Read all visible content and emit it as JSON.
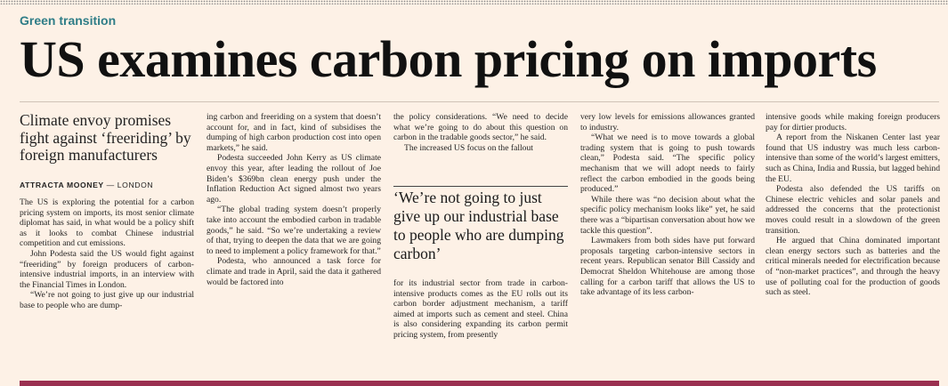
{
  "section": "Green transition",
  "headline": "US examines carbon pricing on imports",
  "standfirst": "Climate envoy promises fight against ‘freeriding’ by foreign manufacturers",
  "byline": {
    "author": "ATTRACTA MOONEY",
    "place": "— LONDON"
  },
  "pull_quote": "‘We’re not going to just give up our industrial base to people who are dumping carbon’",
  "columns": {
    "col1": [
      "The US is exploring the potential for a carbon pricing system on imports, its most senior climate diplomat has said, in what would be a policy shift as it looks to combat Chinese industrial competition and cut emissions.",
      "John Podesta said the US would fight against “freeriding” by foreign producers of carbon-intensive industrial imports, in an interview with the Financial Times in London.",
      "“We’re not going to just give up our industrial base to people who are dump-"
    ],
    "col2": [
      "ing carbon and freeriding on a system that doesn’t account for, and in fact, kind of subsidises the dumping of high carbon production cost into open markets,” he said.",
      "Podesta succeeded John Kerry as US climate envoy this year, after leading the rollout of Joe Biden’s $369bn clean energy push under the Inflation Reduction Act signed almost two years ago.",
      "“The global trading system doesn’t properly take into account the embodied carbon in tradable goods,” he said. “So we’re undertaking a review of that, trying to deepen the data that we are going to need to implement a policy framework for that.”",
      "Podesta, who announced a task force for climate and trade in April, said the data it gathered would be factored into"
    ],
    "col3_top": [
      "the policy considerations. “We need to decide what we’re going to do about this question on carbon in the tradable goods sector,” he said.",
      "The increased US focus on the fallout"
    ],
    "col3_bottom": [
      "for its industrial sector from trade in carbon-intensive products comes as the EU rolls out its carbon border adjustment mechanism, a tariff aimed at imports such as cement and steel. China is also considering expanding its carbon permit pricing system, from presently"
    ],
    "col4": [
      "very low levels for emissions allowances granted to industry.",
      "“What we need is to move towards a global trading system that is going to push towards clean,” Podesta said. “The specific policy mechanism that we will adopt needs to fairly reflect the carbon embodied in the goods being produced.”",
      "While there was “no decision about what the specific policy mechanism looks like” yet, he said there was a “bipartisan conversation about how we tackle this question”.",
      "Lawmakers from both sides have put forward proposals targeting carbon-intensive sectors in recent years. Republican senator Bill Cassidy and Democrat Sheldon Whitehouse are among those calling for a carbon tariff that allows the US to take advantage of its less carbon-"
    ],
    "col5": [
      "intensive goods while making foreign producers pay for dirtier products.",
      "A report from the Niskanen Center last year found that US industry was much less carbon-intensive than some of the world’s largest emitters, such as China, India and Russia, but lagged behind the EU.",
      "Podesta also defended the US tariffs on Chinese electric vehicles and solar panels and addressed the concerns that the protectionist moves could result in a slowdown of the green transition.",
      "He argued that China dominated important clean energy sectors such as batteries and the critical minerals needed for electrification because of “non-market practices”, and through the heavy use of polluting coal for the production of goods such as steel."
    ]
  }
}
